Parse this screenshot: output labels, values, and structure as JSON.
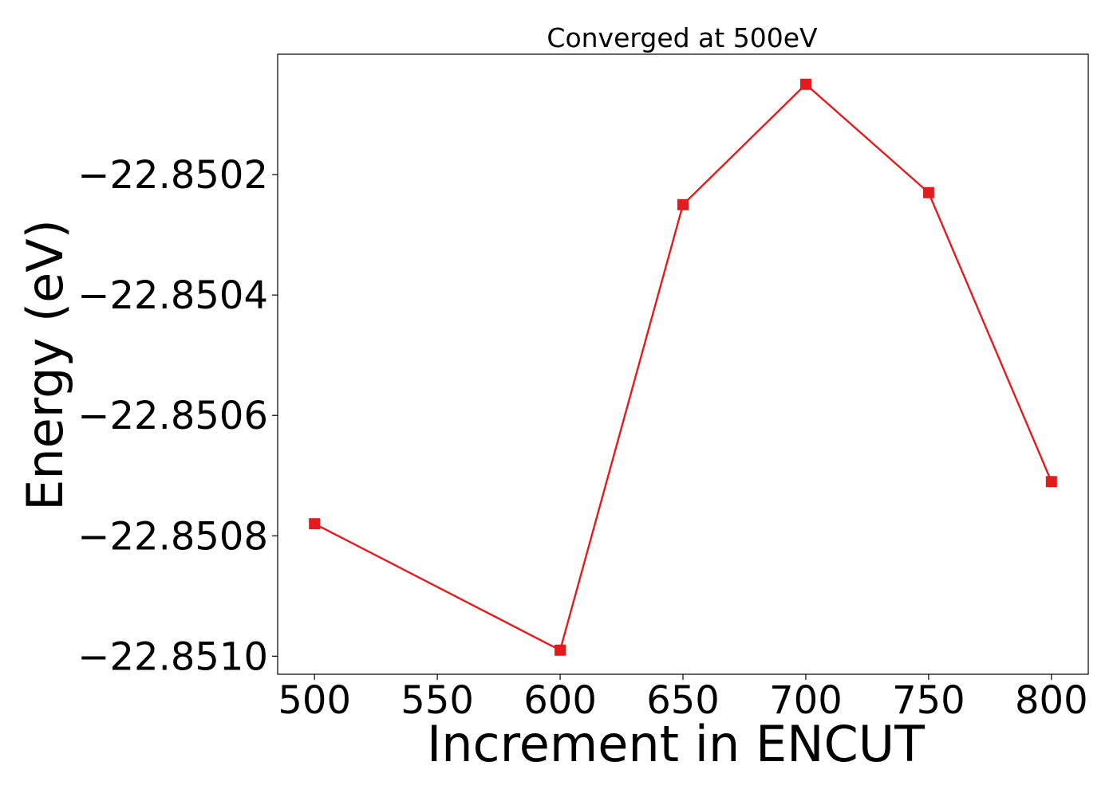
{
  "chart_data": {
    "type": "line",
    "title": "Converged at 500eV",
    "xlabel": "Increment in ENCUT",
    "ylabel": "Energy (eV)",
    "x": [
      500,
      600,
      650,
      700,
      750,
      800
    ],
    "series": [
      {
        "values": [
          -22.85078,
          -22.85099,
          -22.85025,
          -22.85005,
          -22.85023,
          -22.85071
        ],
        "color": "#e41a1c",
        "marker": "square"
      }
    ],
    "xticks": [
      500,
      550,
      600,
      650,
      700,
      750,
      800
    ],
    "xtick_labels": [
      "500",
      "550",
      "600",
      "650",
      "700",
      "750",
      "800"
    ],
    "yticks": [
      -22.851,
      -22.8508,
      -22.8506,
      -22.8504,
      -22.8502
    ],
    "ytick_labels": [
      "−22.8510",
      "−22.8508",
      "−22.8506",
      "−22.8504",
      "−22.8502"
    ],
    "xlim": [
      485,
      815
    ],
    "ylim": [
      -22.85103,
      -22.85
    ],
    "grid": false,
    "legend": "none"
  }
}
